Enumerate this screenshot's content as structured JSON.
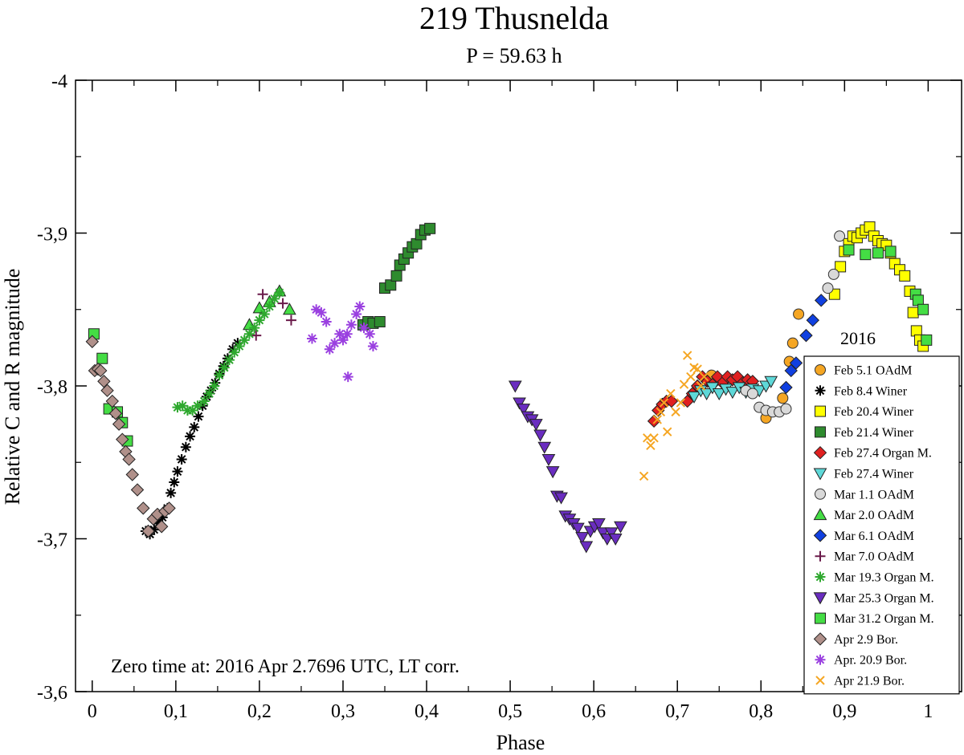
{
  "chart_data": {
    "type": "scatter",
    "title": "219 Thusnelda",
    "subtitle": "P = 59.63 h",
    "xlabel": "Phase",
    "ylabel": "Relative C and R magnitude",
    "xlim": [
      -0.02,
      1.04
    ],
    "ylim": [
      -4.0,
      -3.6
    ],
    "y_inverted_display": true,
    "x_ticks": [
      0,
      0.1,
      0.2,
      0.3,
      0.4,
      0.5,
      0.6,
      0.7,
      0.8,
      0.9,
      1
    ],
    "x_tick_labels": [
      "0",
      "0,1",
      "0,2",
      "0,3",
      "0,4",
      "0,5",
      "0,6",
      "0,7",
      "0,8",
      "0,9",
      "1"
    ],
    "y_ticks": [
      -4.0,
      -3.9,
      -3.8,
      -3.7,
      -3.6
    ],
    "y_tick_labels": [
      "-4",
      "-3,9",
      "-3,8",
      "-3,7",
      "-3,6"
    ],
    "annotation": "Zero time at: 2016 Apr 2.7696 UTC, LT corr.",
    "legend_title": "2016",
    "legend_position": "right",
    "series": [
      {
        "name": "Feb 5.1 OAdM",
        "marker": "circle",
        "color": "#f5a623",
        "points": [
          [
            0.741,
            -3.807
          ],
          [
            0.806,
            -3.779
          ],
          [
            0.826,
            -3.792
          ],
          [
            0.834,
            -3.816
          ],
          [
            0.838,
            -3.828
          ],
          [
            0.845,
            -3.847
          ]
        ]
      },
      {
        "name": "Feb 8.4 Winer",
        "marker": "asterisk",
        "color": "#000000",
        "points": [
          [
            0.064,
            -3.705
          ],
          [
            0.069,
            -3.703
          ],
          [
            0.074,
            -3.706
          ],
          [
            0.079,
            -3.71
          ],
          [
            0.084,
            -3.714
          ],
          [
            0.09,
            -3.72
          ],
          [
            0.094,
            -3.73
          ],
          [
            0.098,
            -3.737
          ],
          [
            0.102,
            -3.744
          ],
          [
            0.107,
            -3.752
          ],
          [
            0.112,
            -3.76
          ],
          [
            0.117,
            -3.767
          ],
          [
            0.122,
            -3.773
          ],
          [
            0.127,
            -3.78
          ],
          [
            0.132,
            -3.787
          ],
          [
            0.137,
            -3.793
          ],
          [
            0.142,
            -3.797
          ],
          [
            0.147,
            -3.802
          ],
          [
            0.152,
            -3.808
          ],
          [
            0.157,
            -3.813
          ],
          [
            0.162,
            -3.818
          ],
          [
            0.168,
            -3.824
          ],
          [
            0.174,
            -3.828
          ]
        ]
      },
      {
        "name": "Feb 20.4 Winer",
        "marker": "square",
        "color": "#ffff00",
        "points": [
          [
            0.888,
            -3.86
          ],
          [
            0.895,
            -3.878
          ],
          [
            0.9,
            -3.888
          ],
          [
            0.905,
            -3.893
          ],
          [
            0.91,
            -3.898
          ],
          [
            0.915,
            -3.897
          ],
          [
            0.92,
            -3.9
          ],
          [
            0.925,
            -3.902
          ],
          [
            0.93,
            -3.904
          ],
          [
            0.935,
            -3.898
          ],
          [
            0.94,
            -3.895
          ],
          [
            0.945,
            -3.893
          ],
          [
            0.95,
            -3.892
          ],
          [
            0.955,
            -3.887
          ],
          [
            0.96,
            -3.88
          ],
          [
            0.966,
            -3.876
          ],
          [
            0.972,
            -3.872
          ],
          [
            0.978,
            -3.862
          ],
          [
            0.982,
            -3.848
          ],
          [
            0.986,
            -3.836
          ],
          [
            0.99,
            -3.83
          ],
          [
            0.994,
            -3.826
          ]
        ]
      },
      {
        "name": "Feb 21.4 Winer",
        "marker": "square",
        "color": "#2e8b2e",
        "points": [
          [
            0.324,
            -3.84
          ],
          [
            0.33,
            -3.842
          ],
          [
            0.336,
            -3.841
          ],
          [
            0.344,
            -3.842
          ],
          [
            0.35,
            -3.864
          ],
          [
            0.357,
            -3.866
          ],
          [
            0.364,
            -3.872
          ],
          [
            0.368,
            -3.879
          ],
          [
            0.373,
            -3.883
          ],
          [
            0.378,
            -3.887
          ],
          [
            0.383,
            -3.891
          ],
          [
            0.388,
            -3.893
          ],
          [
            0.393,
            -3.899
          ],
          [
            0.398,
            -3.902
          ],
          [
            0.404,
            -3.903
          ]
        ]
      },
      {
        "name": "Feb 27.4 Organ M.",
        "marker": "diamond",
        "color": "#e02020",
        "points": [
          [
            0.672,
            -3.777
          ],
          [
            0.677,
            -3.784
          ],
          [
            0.682,
            -3.788
          ],
          [
            0.687,
            -3.79
          ],
          [
            0.693,
            -3.79
          ],
          [
            0.712,
            -3.79
          ],
          [
            0.718,
            -3.795
          ],
          [
            0.724,
            -3.8
          ],
          [
            0.73,
            -3.806
          ],
          [
            0.736,
            -3.803
          ],
          [
            0.742,
            -3.801
          ],
          [
            0.748,
            -3.806
          ],
          [
            0.754,
            -3.802
          ],
          [
            0.76,
            -3.806
          ],
          [
            0.766,
            -3.804
          ],
          [
            0.772,
            -3.806
          ],
          [
            0.778,
            -3.802
          ],
          [
            0.784,
            -3.804
          ],
          [
            0.79,
            -3.803
          ]
        ]
      },
      {
        "name": "Feb 27.4 Winer",
        "marker": "triangle-down",
        "color": "#5ed8d8",
        "points": [
          [
            0.72,
            -3.793
          ],
          [
            0.728,
            -3.797
          ],
          [
            0.735,
            -3.795
          ],
          [
            0.742,
            -3.799
          ],
          [
            0.75,
            -3.795
          ],
          [
            0.758,
            -3.798
          ],
          [
            0.766,
            -3.796
          ],
          [
            0.774,
            -3.799
          ],
          [
            0.782,
            -3.796
          ],
          [
            0.79,
            -3.798
          ],
          [
            0.798,
            -3.797
          ],
          [
            0.806,
            -3.8
          ],
          [
            0.812,
            -3.803
          ]
        ]
      },
      {
        "name": "Mar 1.1 OAdM",
        "marker": "circle",
        "color": "#d9d9d9",
        "points": [
          [
            0.782,
            -3.797
          ],
          [
            0.79,
            -3.795
          ],
          [
            0.798,
            -3.786
          ],
          [
            0.806,
            -3.784
          ],
          [
            0.814,
            -3.783
          ],
          [
            0.822,
            -3.783
          ],
          [
            0.83,
            -3.785
          ],
          [
            0.88,
            -3.864
          ],
          [
            0.887,
            -3.873
          ],
          [
            0.894,
            -3.898
          ]
        ]
      },
      {
        "name": "Mar 2.0 OAdM",
        "marker": "triangle-up",
        "color": "#44dd44",
        "points": [
          [
            0.188,
            -3.84
          ],
          [
            0.2,
            -3.851
          ],
          [
            0.212,
            -3.855
          ],
          [
            0.224,
            -3.862
          ],
          [
            0.236,
            -3.85
          ]
        ]
      },
      {
        "name": "Mar 6.1 OAdM",
        "marker": "diamond",
        "color": "#1040e0",
        "points": [
          [
            0.83,
            -3.799
          ],
          [
            0.836,
            -3.81
          ],
          [
            0.842,
            -3.815
          ],
          [
            0.854,
            -3.833
          ],
          [
            0.862,
            -3.843
          ],
          [
            0.872,
            -3.856
          ]
        ]
      },
      {
        "name": "Mar 7.0 OAdM",
        "marker": "plus",
        "color": "#6a1a4a",
        "points": [
          [
            0.196,
            -3.833
          ],
          [
            0.204,
            -3.86
          ],
          [
            0.228,
            -3.854
          ],
          [
            0.238,
            -3.843
          ]
        ]
      },
      {
        "name": "Mar 19.3 Organ M.",
        "marker": "asterisk",
        "color": "#2ea82e",
        "points": [
          [
            0.102,
            -3.786
          ],
          [
            0.108,
            -3.787
          ],
          [
            0.114,
            -3.784
          ],
          [
            0.12,
            -3.784
          ],
          [
            0.126,
            -3.787
          ],
          [
            0.134,
            -3.79
          ],
          [
            0.14,
            -3.795
          ],
          [
            0.146,
            -3.8
          ],
          [
            0.152,
            -3.807
          ],
          [
            0.158,
            -3.812
          ],
          [
            0.164,
            -3.817
          ],
          [
            0.17,
            -3.822
          ],
          [
            0.176,
            -3.826
          ],
          [
            0.182,
            -3.83
          ],
          [
            0.188,
            -3.834
          ],
          [
            0.194,
            -3.838
          ],
          [
            0.2,
            -3.843
          ],
          [
            0.206,
            -3.847
          ],
          [
            0.212,
            -3.852
          ],
          [
            0.218,
            -3.857
          ],
          [
            0.224,
            -3.861
          ]
        ]
      },
      {
        "name": "Mar 25.3 Organ M.",
        "marker": "triangle-down",
        "color": "#6a2dc0",
        "points": [
          [
            0.506,
            -3.8
          ],
          [
            0.511,
            -3.789
          ],
          [
            0.516,
            -3.785
          ],
          [
            0.521,
            -3.78
          ],
          [
            0.526,
            -3.778
          ],
          [
            0.531,
            -3.775
          ],
          [
            0.536,
            -3.768
          ],
          [
            0.541,
            -3.76
          ],
          [
            0.546,
            -3.752
          ],
          [
            0.551,
            -3.744
          ],
          [
            0.556,
            -3.728
          ],
          [
            0.561,
            -3.727
          ],
          [
            0.566,
            -3.715
          ],
          [
            0.571,
            -3.713
          ],
          [
            0.576,
            -3.71
          ],
          [
            0.581,
            -3.707
          ],
          [
            0.586,
            -3.701
          ],
          [
            0.591,
            -3.695
          ],
          [
            0.596,
            -3.705
          ],
          [
            0.601,
            -3.708
          ],
          [
            0.606,
            -3.71
          ],
          [
            0.611,
            -3.704
          ],
          [
            0.616,
            -3.7
          ],
          [
            0.621,
            -3.704
          ],
          [
            0.626,
            -3.7
          ],
          [
            0.632,
            -3.708
          ]
        ]
      },
      {
        "name": "Mar 31.2 Organ M.",
        "marker": "square",
        "color": "#44dd44",
        "points": [
          [
            0.002,
            -3.834
          ],
          [
            0.012,
            -3.818
          ],
          [
            0.02,
            -3.785
          ],
          [
            0.03,
            -3.783
          ],
          [
            0.036,
            -3.776
          ],
          [
            0.042,
            -3.764
          ],
          [
            0.905,
            -3.889
          ],
          [
            0.925,
            -3.886
          ],
          [
            0.94,
            -3.887
          ],
          [
            0.955,
            -3.888
          ],
          [
            0.985,
            -3.86
          ],
          [
            0.988,
            -3.856
          ],
          [
            0.994,
            -3.85
          ],
          [
            0.998,
            -3.83
          ]
        ]
      },
      {
        "name": "Apr 2.9 Bor.",
        "marker": "diamond",
        "color": "#b0908a",
        "points": [
          [
            0,
            -3.829
          ],
          [
            0.003,
            -3.81
          ],
          [
            0.007,
            -3.811
          ],
          [
            0.01,
            -3.81
          ],
          [
            0.014,
            -3.803
          ],
          [
            0.018,
            -3.797
          ],
          [
            0.024,
            -3.79
          ],
          [
            0.028,
            -3.782
          ],
          [
            0.032,
            -3.775
          ],
          [
            0.036,
            -3.765
          ],
          [
            0.04,
            -3.757
          ],
          [
            0.044,
            -3.752
          ],
          [
            0.048,
            -3.742
          ],
          [
            0.054,
            -3.732
          ],
          [
            0.061,
            -3.72
          ],
          [
            0.067,
            -3.705
          ],
          [
            0.073,
            -3.713
          ],
          [
            0.078,
            -3.716
          ],
          [
            0.083,
            -3.708
          ],
          [
            0.087,
            -3.718
          ],
          [
            0.092,
            -3.72
          ]
        ]
      },
      {
        "name": "Apr. 20.9 Bor.",
        "marker": "asterisk",
        "color": "#9a40e0",
        "points": [
          [
            0.263,
            -3.831
          ],
          [
            0.268,
            -3.85
          ],
          [
            0.274,
            -3.848
          ],
          [
            0.28,
            -3.842
          ],
          [
            0.284,
            -3.824
          ],
          [
            0.29,
            -3.828
          ],
          [
            0.296,
            -3.834
          ],
          [
            0.3,
            -3.83
          ],
          [
            0.305,
            -3.834
          ],
          [
            0.31,
            -3.84
          ],
          [
            0.316,
            -3.847
          ],
          [
            0.32,
            -3.852
          ],
          [
            0.325,
            -3.838
          ],
          [
            0.332,
            -3.834
          ],
          [
            0.336,
            -3.826
          ],
          [
            0.306,
            -3.806
          ]
        ]
      },
      {
        "name": "Apr 21.9 Bor.",
        "marker": "cross",
        "color": "#f5a623",
        "points": [
          [
            0.66,
            -3.741
          ],
          [
            0.664,
            -3.766
          ],
          [
            0.668,
            -3.761
          ],
          [
            0.672,
            -3.766
          ],
          [
            0.676,
            -3.778
          ],
          [
            0.68,
            -3.783
          ],
          [
            0.684,
            -3.789
          ],
          [
            0.688,
            -3.77
          ],
          [
            0.692,
            -3.795
          ],
          [
            0.698,
            -3.783
          ],
          [
            0.704,
            -3.789
          ],
          [
            0.708,
            -3.801
          ],
          [
            0.712,
            -3.82
          ],
          [
            0.716,
            -3.806
          ],
          [
            0.72,
            -3.812
          ],
          [
            0.724,
            -3.811
          ],
          [
            0.728,
            -3.8
          ],
          [
            0.732,
            -3.806
          ]
        ]
      }
    ]
  }
}
